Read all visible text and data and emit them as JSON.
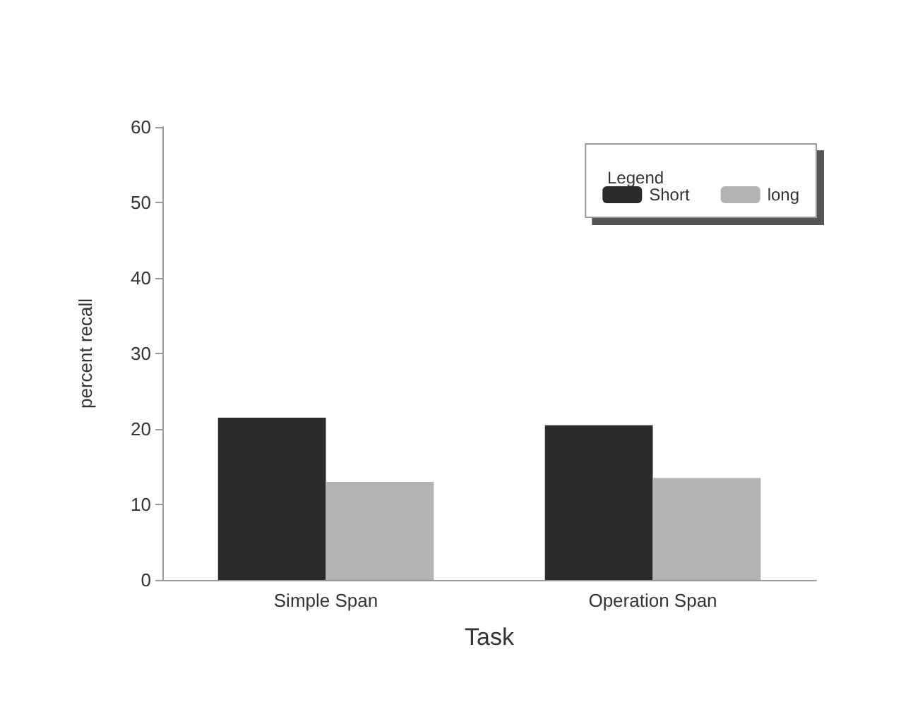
{
  "chart_data": {
    "type": "bar",
    "xlabel": "Task",
    "ylabel": "percent recall",
    "legend_title": "Legend",
    "categories": [
      "Simple Span",
      "Operation Span"
    ],
    "series": [
      {
        "name": "Short",
        "color": "#2b2b2b",
        "values": [
          21.5,
          20.5
        ]
      },
      {
        "name": "long",
        "color": "#b3b3b3",
        "values": [
          13,
          13.5
        ]
      }
    ],
    "ylim": [
      0,
      60
    ],
    "yticks": [
      0,
      10,
      20,
      30,
      40,
      50,
      60
    ],
    "grid": false,
    "legend": "top right"
  }
}
